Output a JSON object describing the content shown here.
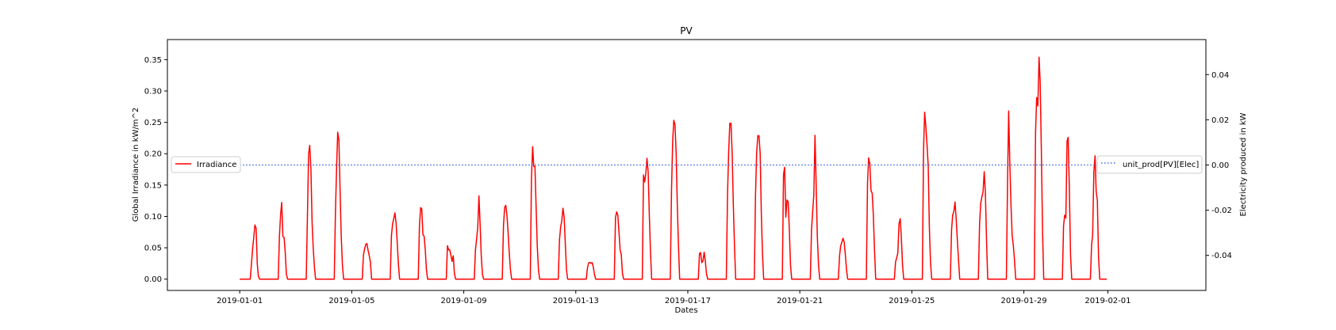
{
  "chart_data": {
    "type": "line",
    "title": "PV",
    "xlabel": "Dates",
    "ylabel_left": "Global Irradiance in kW/m^2",
    "ylabel_right": "Electricity produced in kW",
    "x_range": [
      "2018-12-29T10:00",
      "2019-02-04T12:00"
    ],
    "x_ticks": [
      "2019-01-01",
      "2019-01-05",
      "2019-01-09",
      "2019-01-13",
      "2019-01-17",
      "2019-01-21",
      "2019-01-25",
      "2019-01-29",
      "2019-02-01"
    ],
    "ylim_left": [
      -0.018,
      0.382
    ],
    "yticks_left": [
      "0.00",
      "0.05",
      "0.10",
      "0.15",
      "0.20",
      "0.25",
      "0.30",
      "0.35"
    ],
    "ylim_right": [
      -0.0555,
      0.0555
    ],
    "yticks_right": [
      "-0.04",
      "-0.02",
      "0.00",
      "0.02",
      "0.04"
    ],
    "grid": false,
    "series": [
      {
        "name": "Irradiance",
        "axis": "left",
        "color": "#ff0000",
        "style": "solid",
        "daily_profiles": [
          {
            "date": "2019-01-01",
            "values": [
              0.02,
              0.025,
              0.06,
              0.07,
              0.107,
              0.03,
              0.005
            ]
          },
          {
            "date": "2019-01-02",
            "values": [
              0.04,
              0.09,
              0.13,
              0.06,
              0.07,
              0.01
            ]
          },
          {
            "date": "2019-01-03",
            "values": [
              0.05,
              0.2,
              0.22,
              0.09,
              0.03
            ]
          },
          {
            "date": "2019-01-04",
            "values": [
              0.05,
              0.15,
              0.236,
              0.22,
              0.1,
              0.03
            ]
          },
          {
            "date": "2019-01-05",
            "values": [
              0.03,
              0.045,
              0.055,
              0.057,
              0.04,
              0.035
            ]
          },
          {
            "date": "2019-01-06",
            "values": [
              0.05,
              0.085,
              0.095,
              0.107,
              0.08,
              0.03
            ]
          },
          {
            "date": "2019-01-07",
            "values": [
              0.05,
              0.112,
              0.118,
              0.065,
              0.07,
              0.02
            ]
          },
          {
            "date": "2019-01-08",
            "values": [
              0.03,
              0.06,
              0.04,
              0.052,
              0.02,
              0.045,
              0.01
            ]
          },
          {
            "date": "2019-01-09",
            "values": [
              0.03,
              0.06,
              0.075,
              0.14,
              0.06,
              0.01
            ]
          },
          {
            "date": "2019-01-10",
            "values": [
              0.05,
              0.112,
              0.12,
              0.1,
              0.06,
              0.02
            ]
          },
          {
            "date": "2019-01-11",
            "values": [
              0.08,
              0.227,
              0.18,
              0.18,
              0.08,
              0.02
            ]
          },
          {
            "date": "2019-01-12",
            "values": [
              0.04,
              0.08,
              0.09,
              0.116,
              0.09,
              0.02
            ]
          },
          {
            "date": "2019-01-13",
            "values": [
              0.01,
              0.025,
              0.027,
              0.025,
              0.027,
              0.01
            ]
          },
          {
            "date": "2019-01-14",
            "values": [
              0.05,
              0.112,
              0.105,
              0.1,
              0.045,
              0.048,
              0.01
            ]
          },
          {
            "date": "2019-01-15",
            "values": [
              0.1,
              0.185,
              0.14,
              0.19,
              0.196,
              0.12,
              0.05
            ]
          },
          {
            "date": "2019-01-16",
            "values": [
              0.1,
              0.22,
              0.27,
              0.2,
              0.08
            ]
          },
          {
            "date": "2019-01-17",
            "values": [
              0.02,
              0.047,
              0.04,
              0.015,
              0.047,
              0.035,
              0.01
            ]
          },
          {
            "date": "2019-01-18",
            "values": [
              0.1,
              0.2,
              0.273,
              0.2,
              0.08
            ]
          },
          {
            "date": "2019-01-19",
            "values": [
              0.1,
              0.2,
              0.243,
              0.2,
              0.06
            ]
          },
          {
            "date": "2019-01-20",
            "values": [
              0.1,
              0.22,
              0.095,
              0.13,
              0.12,
              0.03
            ]
          },
          {
            "date": "2019-01-21",
            "values": [
              0.05,
              0.1,
              0.12,
              0.243,
              0.1,
              0.03
            ]
          },
          {
            "date": "2019-01-22",
            "values": [
              0.02,
              0.05,
              0.058,
              0.066,
              0.055,
              0.02
            ]
          },
          {
            "date": "2019-01-23",
            "values": [
              0.1,
              0.195,
              0.19,
              0.135,
              0.138,
              0.06
            ]
          },
          {
            "date": "2019-01-24",
            "values": [
              0.02,
              0.033,
              0.035,
              0.095,
              0.097,
              0.03
            ]
          },
          {
            "date": "2019-01-25",
            "values": [
              0.12,
              0.23,
              0.284,
              0.21,
              0.22,
              0.1,
              0.03
            ]
          },
          {
            "date": "2019-01-26",
            "values": [
              0.05,
              0.1,
              0.106,
              0.125,
              0.08,
              0.04
            ]
          },
          {
            "date": "2019-01-27",
            "values": [
              0.05,
              0.115,
              0.13,
              0.14,
              0.187,
              0.08
            ]
          },
          {
            "date": "2019-01-28",
            "values": [
              0.1,
              0.268,
              0.14,
              0.07,
              0.045
            ]
          },
          {
            "date": "2019-01-29",
            "values": [
              0.15,
              0.302,
              0.265,
              0.365,
              0.29,
              0.1
            ]
          },
          {
            "date": "2019-01-30",
            "values": [
              0.05,
              0.113,
              0.08,
              0.238,
              0.22,
              0.05
            ]
          },
          {
            "date": "2019-01-31",
            "values": [
              0.03,
              0.06,
              0.078,
              0.246,
              0.135,
              0.15,
              0.04
            ]
          }
        ]
      },
      {
        "name": "unit_prod[PV][Elec]",
        "axis": "right",
        "color": "#4169e1",
        "style": "dotted",
        "x": [
          "2019-01-01T00:00",
          "2019-02-01T00:00"
        ],
        "values": [
          0.0,
          0.0
        ]
      }
    ],
    "legend_left": {
      "placement": "center-left",
      "label": "Irradiance"
    },
    "legend_right": {
      "placement": "center-right",
      "label": "unit_prod[PV][Elec]"
    }
  }
}
